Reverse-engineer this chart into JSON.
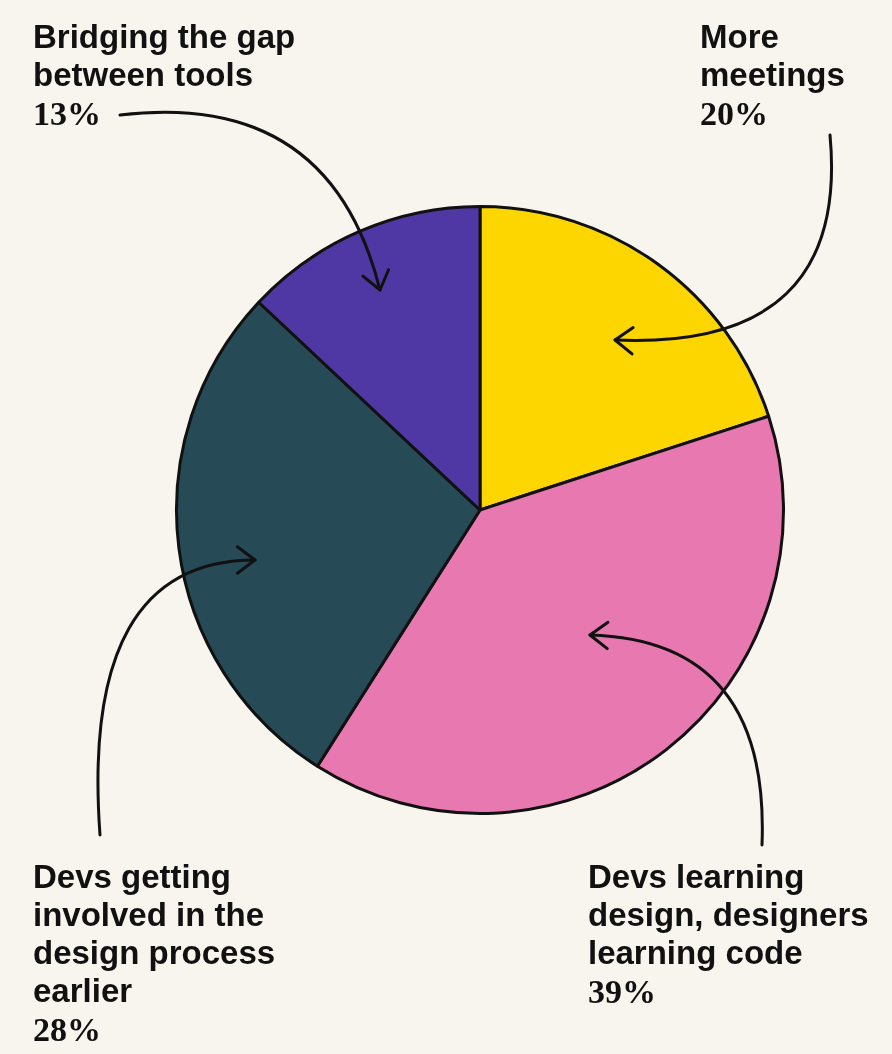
{
  "chart_data": {
    "type": "pie",
    "categories": [
      "More meetings",
      "Devs learning design, designers learning code",
      "Devs getting involved in the design process earlier",
      "Bridging the gap between tools"
    ],
    "values": [
      20,
      39,
      28,
      13
    ],
    "colors": [
      "#fdd600",
      "#e878b0",
      "#264b56",
      "#4f38a3"
    ],
    "value_labels": [
      "20%",
      "39%",
      "28%",
      "13%"
    ]
  }
}
